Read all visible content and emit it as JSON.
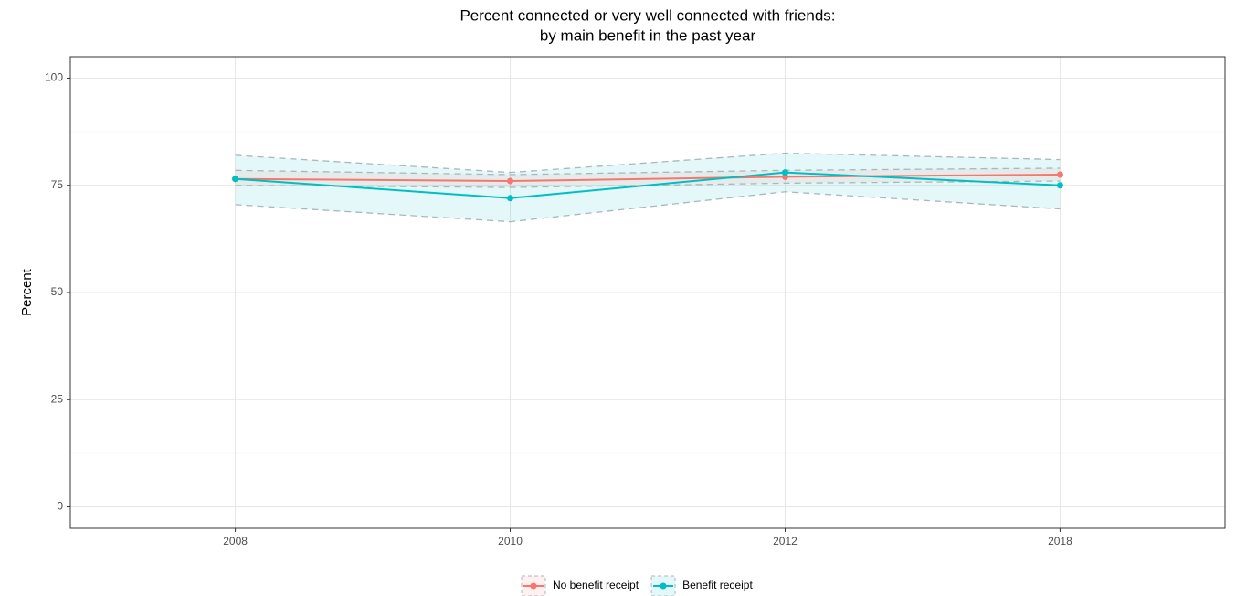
{
  "chart_data": {
    "type": "line",
    "title": "Percent connected or very well connected with friends:",
    "subtitle": "by main benefit in the past year",
    "y_label": "Percent",
    "categories": [
      "2008",
      "2010",
      "2012",
      "2018"
    ],
    "series": [
      {
        "name": "No benefit receipt",
        "color": "#F8766D",
        "values": [
          76.5,
          76,
          77,
          77.5
        ],
        "lower": [
          75,
          74.5,
          75.5,
          76
        ],
        "upper": [
          78.5,
          77.5,
          78.5,
          79
        ]
      },
      {
        "name": "Benefit receipt",
        "color": "#00BFC4",
        "values": [
          76.5,
          72,
          78,
          75
        ],
        "lower": [
          70.5,
          66.5,
          73.5,
          69.5
        ],
        "upper": [
          82,
          78,
          82.5,
          81
        ]
      }
    ],
    "ylim": [
      -5,
      105
    ],
    "yticks": [
      0,
      25,
      50,
      75,
      100
    ],
    "grid": true,
    "legend": "bottom"
  }
}
